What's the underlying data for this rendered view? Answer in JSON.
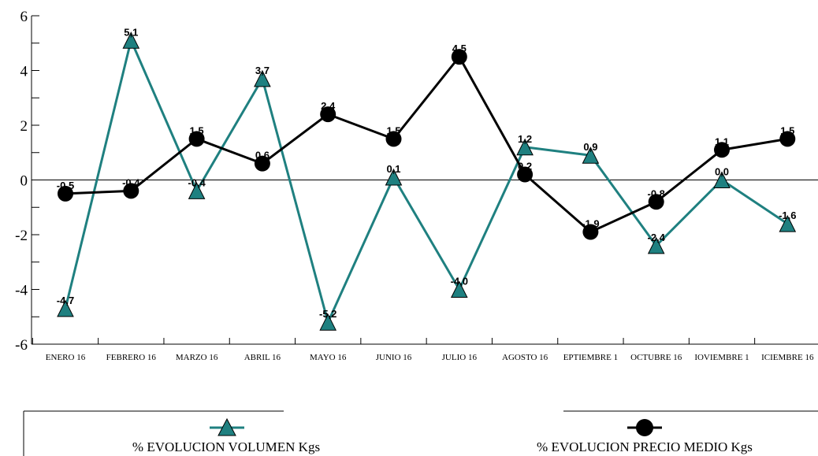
{
  "chart_data": {
    "type": "line",
    "categories": [
      "ENERO 16",
      "FEBRERO 16",
      "MARZO 16",
      "ABRIL 16",
      "MAYO 16",
      "JUNIO 16",
      "JULIO 16",
      "AGOSTO 16",
      "EPTIEMBRE 1",
      "OCTUBRE 16",
      "IOVIEMBRE 1",
      "ICIEMBRE 16"
    ],
    "ylim": [
      -6,
      6
    ],
    "yticks": [
      "-6",
      "-4",
      "-2",
      "0",
      "2",
      "4",
      "6"
    ],
    "series": [
      {
        "name": "% EVOLUCION VOLUMEN Kgs",
        "color": "#1f8080",
        "marker": "triangle",
        "values": [
          -4.7,
          5.1,
          -0.4,
          3.7,
          -5.2,
          0.1,
          -4.0,
          1.2,
          0.9,
          -2.4,
          0.0,
          -1.6
        ],
        "labels": [
          "-4,7",
          "5,1",
          "-0,4",
          "3,7",
          "-5,2",
          "0,1",
          "-4,0",
          "1,2",
          "0,9",
          "-2,4",
          "0,0",
          "-1,6"
        ]
      },
      {
        "name": "% EVOLUCION PRECIO MEDIO Kgs",
        "color": "#000000",
        "marker": "circle",
        "values": [
          -0.5,
          -0.4,
          1.5,
          0.6,
          2.4,
          1.5,
          4.5,
          0.2,
          -1.9,
          -0.8,
          1.1,
          1.5
        ],
        "labels": [
          "-0,5",
          "-0,4",
          "1,5",
          "0,6",
          "2,4",
          "1,5",
          "4,5",
          "0,2",
          "-1,9",
          "-0,8",
          "1,1",
          "1,5"
        ]
      }
    ],
    "legend_position": "bottom"
  }
}
